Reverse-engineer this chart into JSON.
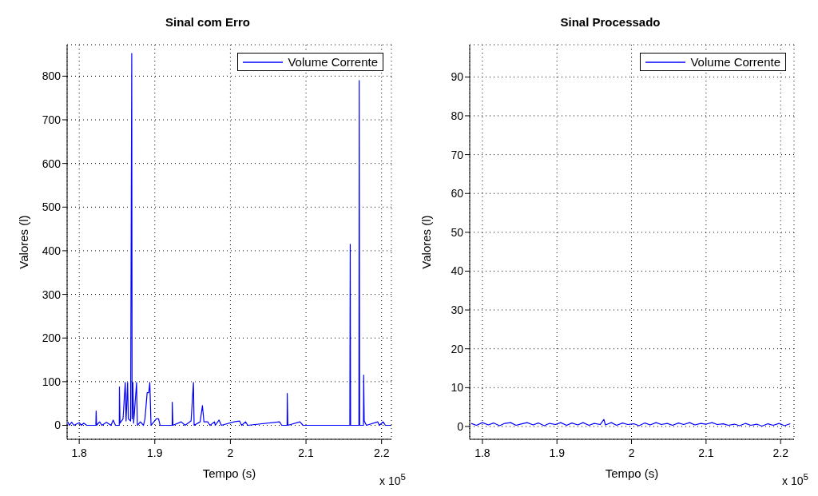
{
  "chart_data": [
    {
      "type": "line",
      "title": "Sinal com Erro",
      "xlabel": "Tempo (s)",
      "ylabel": "Valores (l)",
      "annotations": [
        "x 10$^{5}$"
      ],
      "xlim": [
        1.784,
        2.213
      ],
      "xticks": [
        1.8,
        1.9,
        2,
        2.1,
        2.2
      ],
      "ylim": [
        -32,
        872
      ],
      "yticks": [
        0,
        100,
        200,
        300,
        400,
        500,
        600,
        700,
        800
      ],
      "grid": true,
      "legend": "top right",
      "line_style": "solid",
      "marker": "none",
      "series": [
        {
          "name": "Volume Corrente",
          "color": "#0000ff",
          "x": [
            1.785,
            1.787,
            1.79,
            1.793,
            1.8,
            1.803,
            1.806,
            1.81,
            1.822,
            1.8224,
            1.823,
            1.827,
            1.83,
            1.836,
            1.842,
            1.845,
            1.848,
            1.853,
            1.8532,
            1.854,
            1.858,
            1.8609,
            1.862,
            1.864,
            1.865,
            1.868,
            1.8695,
            1.87,
            1.871,
            1.872,
            1.8759,
            1.877,
            1.881,
            1.885,
            1.887,
            1.8899,
            1.892,
            1.8934,
            1.895,
            1.902,
            1.905,
            1.907,
            1.923,
            1.9231,
            1.924,
            1.935,
            1.94,
            1.948,
            1.9511,
            1.952,
            1.96,
            1.963,
            1.965,
            1.97,
            1.973,
            1.979,
            1.98,
            1.985,
            1.988,
            2.005,
            2.012,
            2.015,
            2.02,
            2.023,
            2.065,
            2.068,
            2.075,
            2.0752,
            2.076,
            2.092,
            2.096,
            2.158,
            2.1585,
            2.159,
            2.17,
            2.1704,
            2.171,
            2.176,
            2.1763,
            2.177,
            2.18,
            2.195,
            2.197,
            2.202,
            2.205,
            2.212
          ],
          "values": [
            8,
            0,
            7,
            0,
            6,
            0,
            5,
            0,
            0,
            33,
            0,
            8,
            0,
            7,
            0,
            12,
            0,
            0,
            88,
            5,
            15,
            98,
            10,
            98,
            15,
            10,
            852,
            15,
            98,
            5,
            98,
            0,
            8,
            0,
            15,
            75,
            75,
            98,
            0,
            15,
            15,
            0,
            0,
            53,
            0,
            8,
            0,
            10,
            98,
            0,
            8,
            45,
            8,
            8,
            0,
            8,
            0,
            12,
            0,
            8,
            10,
            0,
            8,
            0,
            8,
            0,
            0,
            73,
            0,
            8,
            0,
            0,
            415,
            0,
            0,
            790,
            0,
            0,
            115,
            10,
            0,
            8,
            0,
            8,
            0,
            0
          ]
        }
      ]
    },
    {
      "type": "line",
      "title": "Sinal Processado",
      "xlabel": "Tempo (s)",
      "ylabel": "Valores (l)",
      "annotations": [
        "x 10$^{5}$"
      ],
      "xlim": [
        1.783,
        2.218
      ],
      "xticks": [
        1.8,
        1.9,
        2,
        2.1,
        2.2
      ],
      "ylim": [
        -3.3,
        98.3
      ],
      "yticks": [
        0,
        10,
        20,
        30,
        40,
        50,
        60,
        70,
        80,
        90
      ],
      "grid": true,
      "legend": "top right",
      "line_style": "solid",
      "marker": "none",
      "series": [
        {
          "name": "Volume Corrente",
          "color": "#0000ff",
          "x": [
            1.785,
            1.792,
            1.8,
            1.808,
            1.815,
            1.823,
            1.83,
            1.838,
            1.845,
            1.853,
            1.86,
            1.868,
            1.875,
            1.883,
            1.89,
            1.898,
            1.905,
            1.913,
            1.92,
            1.928,
            1.935,
            1.943,
            1.95,
            1.958,
            1.963,
            1.965,
            1.973,
            1.98,
            1.988,
            1.995,
            2.003,
            2.01,
            2.018,
            2.025,
            2.033,
            2.04,
            2.048,
            2.055,
            2.063,
            2.07,
            2.078,
            2.085,
            2.093,
            2.1,
            2.108,
            2.115,
            2.123,
            2.13,
            2.138,
            2.145,
            2.153,
            2.16,
            2.168,
            2.175,
            2.183,
            2.19,
            2.198,
            2.205,
            2.213
          ],
          "values": [
            0.8,
            0.3,
            1.0,
            0.4,
            0.9,
            0.2,
            0.8,
            1.0,
            0.3,
            0.7,
            1.0,
            0.4,
            0.9,
            0.2,
            0.8,
            0.5,
            1.0,
            0.3,
            0.9,
            0.4,
            1.0,
            0.3,
            0.8,
            0.5,
            1.8,
            0.4,
            1.0,
            0.3,
            0.9,
            0.5,
            0.7,
            0.2,
            0.9,
            0.4,
            1.0,
            0.5,
            0.8,
            0.3,
            0.9,
            0.5,
            1.0,
            0.4,
            0.8,
            0.6,
            1.0,
            0.5,
            0.7,
            0.3,
            0.6,
            0.2,
            0.8,
            0.3,
            0.6,
            0.1,
            0.7,
            0.3,
            0.8,
            0.2,
            0.7
          ]
        }
      ]
    }
  ]
}
